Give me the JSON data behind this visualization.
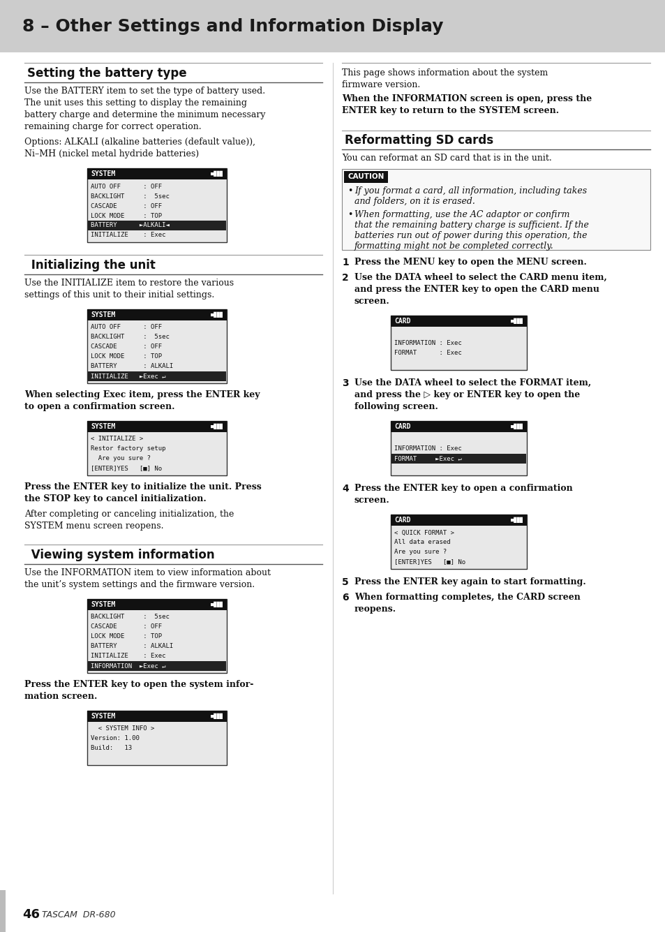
{
  "page_bg": "#ffffff",
  "header_bg": "#cccccc",
  "header_text": "8 – Other Settings and Information Display",
  "header_text_color": "#1a1a1a",
  "footer_page": "46",
  "footer_brand": "TASCAM  DR-680",
  "left_bar_color": "#aaaaaa"
}
